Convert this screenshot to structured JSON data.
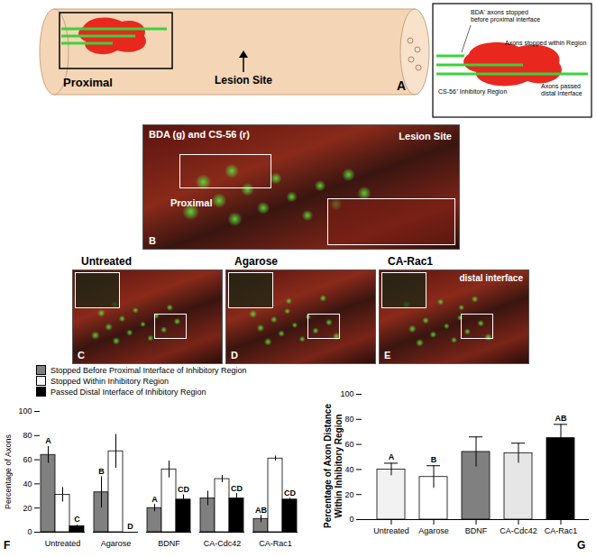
{
  "chart_data": [
    {
      "type": "bar",
      "panel": "F",
      "ylabel": "Percentage of Axons",
      "categories": [
        "Untreated",
        "Agarose",
        "BDNF",
        "CA-Cdc42",
        "CA-Rac1"
      ],
      "series": [
        {
          "name": "Stopped Before Proximal Interface of Inhibitory Region",
          "color": "#808080",
          "values": [
            64,
            33,
            20,
            28,
            11
          ],
          "errors": [
            7,
            13,
            3,
            6,
            3
          ]
        },
        {
          "name": "Stopped Within Inhibitory Region",
          "color": "#ffffff",
          "values": [
            31,
            67,
            52,
            44,
            61
          ],
          "errors": [
            6,
            14,
            7,
            3,
            2
          ]
        },
        {
          "name": "Passed Distal Interface of Inhibitory Region",
          "color": "#000000",
          "values": [
            5,
            0,
            27,
            28,
            27
          ],
          "errors": [
            1,
            0,
            4,
            4,
            1
          ]
        }
      ],
      "ylim": [
        0,
        100
      ],
      "yticks": [
        0,
        20,
        40,
        60,
        80,
        100
      ],
      "legend": "top-left",
      "annotations": [
        {
          "category": "Untreated",
          "series": "Stopped Before Proximal Interface of Inhibitory Region",
          "text": "A"
        },
        {
          "category": "Untreated",
          "series": "Passed Distal Interface of Inhibitory Region",
          "text": "C"
        },
        {
          "category": "Agarose",
          "series": "Stopped Before Proximal Interface of Inhibitory Region",
          "text": "B"
        },
        {
          "category": "Agarose",
          "series": "Passed Distal Interface of Inhibitory Region",
          "text": "D"
        },
        {
          "category": "BDNF",
          "series": "Stopped Before Proximal Interface of Inhibitory Region",
          "text": "A"
        },
        {
          "category": "BDNF",
          "series": "Passed Distal Interface of Inhibitory Region",
          "text": "CD"
        },
        {
          "category": "CA-Cdc42",
          "series": "Passed Distal Interface of Inhibitory Region",
          "text": "CD"
        },
        {
          "category": "CA-Rac1",
          "series": "Stopped Before Proximal Interface of Inhibitory Region",
          "text": "AB"
        },
        {
          "category": "CA-Rac1",
          "series": "Passed Distal Interface of Inhibitory Region",
          "text": "CD"
        }
      ]
    },
    {
      "type": "bar",
      "panel": "G",
      "ylabel": "Percentage of Axon Distance Within Inhibitory Region",
      "categories": [
        "Untreated",
        "Agarose",
        "BDNF",
        "CA-Cdc42",
        "CA-Rac1"
      ],
      "values": [
        40,
        34,
        54,
        53,
        65
      ],
      "errors": [
        5,
        9,
        12,
        8,
        11
      ],
      "colors": [
        "#f2f2f2",
        "#ffffff",
        "#808080",
        "#e6e6e6",
        "#000000"
      ],
      "ylim": [
        0,
        100
      ],
      "yticks": [
        0,
        20,
        40,
        60,
        80,
        100
      ],
      "annotations": [
        {
          "category": "Untreated",
          "text": "A"
        },
        {
          "category": "Agarose",
          "text": "B"
        },
        {
          "category": "CA-Rac1",
          "text": "AB"
        }
      ]
    }
  ],
  "figure": {
    "A": {
      "letter": "A",
      "proximal": "Proximal",
      "lesion": "Lesion Site",
      "inset": [
        "BDA⁺ axons stopped before proximal interface",
        "Axons stopped within Region",
        "CS-56⁺ Inhibitory Region",
        "Axons passed distal Interface"
      ]
    },
    "B": {
      "letter": "B",
      "stain": "BDA (g) and CS-56 (r)",
      "lesion": "Lesion Site",
      "proximal": "Proximal"
    },
    "C": {
      "letter": "C",
      "title": "Untreated"
    },
    "D": {
      "letter": "D",
      "title": "Agarose"
    },
    "E": {
      "letter": "E",
      "title": "CA-Rac1",
      "note": "distal interface"
    }
  }
}
